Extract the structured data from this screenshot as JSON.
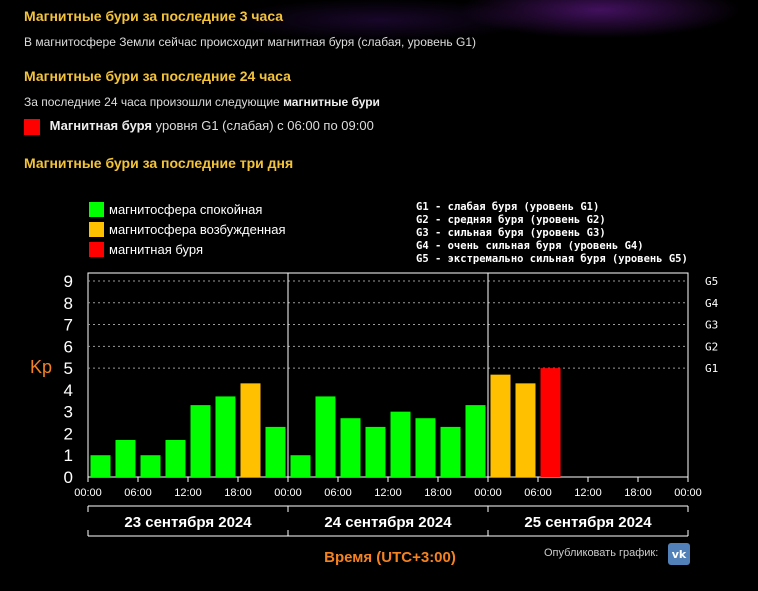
{
  "section3h": {
    "title": "Магнитные бури за последние 3 часа",
    "text": "В магнитосфере Земли сейчас происходит магнитная буря (слабая, уровень G1)"
  },
  "section24h": {
    "title": "Магнитные бури за последние 24 часа",
    "text_prefix": "За последние 24 часа произошли следующие",
    "text_bold": "магнитные бури",
    "event_color": "#ff0000",
    "event_bold": "Магнитная буря",
    "event_rest": "уровня G1 (слабая) с 06:00 по 09:00"
  },
  "section3d": {
    "title": "Магнитные бури за последние три дня"
  },
  "colors": {
    "quiet": "#00ff00",
    "unsettled": "#ffc000",
    "storm": "#ff0000",
    "heading": "#f3c33a",
    "kp_label": "#f58220"
  },
  "chart_data": {
    "type": "bar",
    "legend": [
      {
        "label": "магнитосфера спокойная",
        "color": "#00ff00"
      },
      {
        "label": "магнитосфера возбужденная",
        "color": "#ffc000"
      },
      {
        "label": "магнитная буря",
        "color": "#ff0000"
      }
    ],
    "g_legend": [
      "G1 - слабая буря (уровень G1)",
      "G2 - средняя буря (уровень G2)",
      "G3 - сильная буря (уровень G3)",
      "G4 - очень сильная буря (уровень G4)",
      "G5 - экстремально сильная буря (уровень G5)"
    ],
    "ylabel": "Kp",
    "xlabel": "Время (UTC+3:00)",
    "ylim": [
      0,
      9
    ],
    "y_ticks": [
      "0",
      "1",
      "2",
      "3",
      "4",
      "5",
      "6",
      "7",
      "8",
      "9"
    ],
    "g_ticks": [
      {
        "label": "G1",
        "kp": 5
      },
      {
        "label": "G2",
        "kp": 6
      },
      {
        "label": "G3",
        "kp": 7
      },
      {
        "label": "G4",
        "kp": 8
      },
      {
        "label": "G5",
        "kp": 9
      }
    ],
    "x_tick_labels": [
      "00:00",
      "06:00",
      "12:00",
      "18:00",
      "00:00",
      "06:00",
      "12:00",
      "18:00",
      "00:00",
      "06:00",
      "12:00",
      "18:00",
      "00:00"
    ],
    "days": [
      "23 сентября 2024",
      "24 сентября 2024",
      "25 сентября 2024"
    ],
    "grid_dotted_levels": [
      5,
      6,
      7,
      8,
      9
    ],
    "bars": [
      {
        "day": 0,
        "slot": 0,
        "kp": 1.0,
        "level": "quiet"
      },
      {
        "day": 0,
        "slot": 1,
        "kp": 1.7,
        "level": "quiet"
      },
      {
        "day": 0,
        "slot": 2,
        "kp": 1.0,
        "level": "quiet"
      },
      {
        "day": 0,
        "slot": 3,
        "kp": 1.7,
        "level": "quiet"
      },
      {
        "day": 0,
        "slot": 4,
        "kp": 3.3,
        "level": "quiet"
      },
      {
        "day": 0,
        "slot": 5,
        "kp": 3.7,
        "level": "quiet"
      },
      {
        "day": 0,
        "slot": 6,
        "kp": 4.3,
        "level": "unsettled"
      },
      {
        "day": 0,
        "slot": 7,
        "kp": 2.3,
        "level": "quiet"
      },
      {
        "day": 1,
        "slot": 0,
        "kp": 1.0,
        "level": "quiet"
      },
      {
        "day": 1,
        "slot": 1,
        "kp": 3.7,
        "level": "quiet"
      },
      {
        "day": 1,
        "slot": 2,
        "kp": 2.7,
        "level": "quiet"
      },
      {
        "day": 1,
        "slot": 3,
        "kp": 2.3,
        "level": "quiet"
      },
      {
        "day": 1,
        "slot": 4,
        "kp": 3.0,
        "level": "quiet"
      },
      {
        "day": 1,
        "slot": 5,
        "kp": 2.7,
        "level": "quiet"
      },
      {
        "day": 1,
        "slot": 6,
        "kp": 2.3,
        "level": "quiet"
      },
      {
        "day": 1,
        "slot": 7,
        "kp": 3.3,
        "level": "quiet"
      },
      {
        "day": 2,
        "slot": 0,
        "kp": 4.7,
        "level": "unsettled"
      },
      {
        "day": 2,
        "slot": 1,
        "kp": 4.3,
        "level": "unsettled"
      },
      {
        "day": 2,
        "slot": 2,
        "kp": 5.0,
        "level": "storm"
      }
    ]
  },
  "publish": {
    "label": "Опубликовать график:",
    "vk_icon": "vk-icon",
    "vk_text": "vk"
  }
}
